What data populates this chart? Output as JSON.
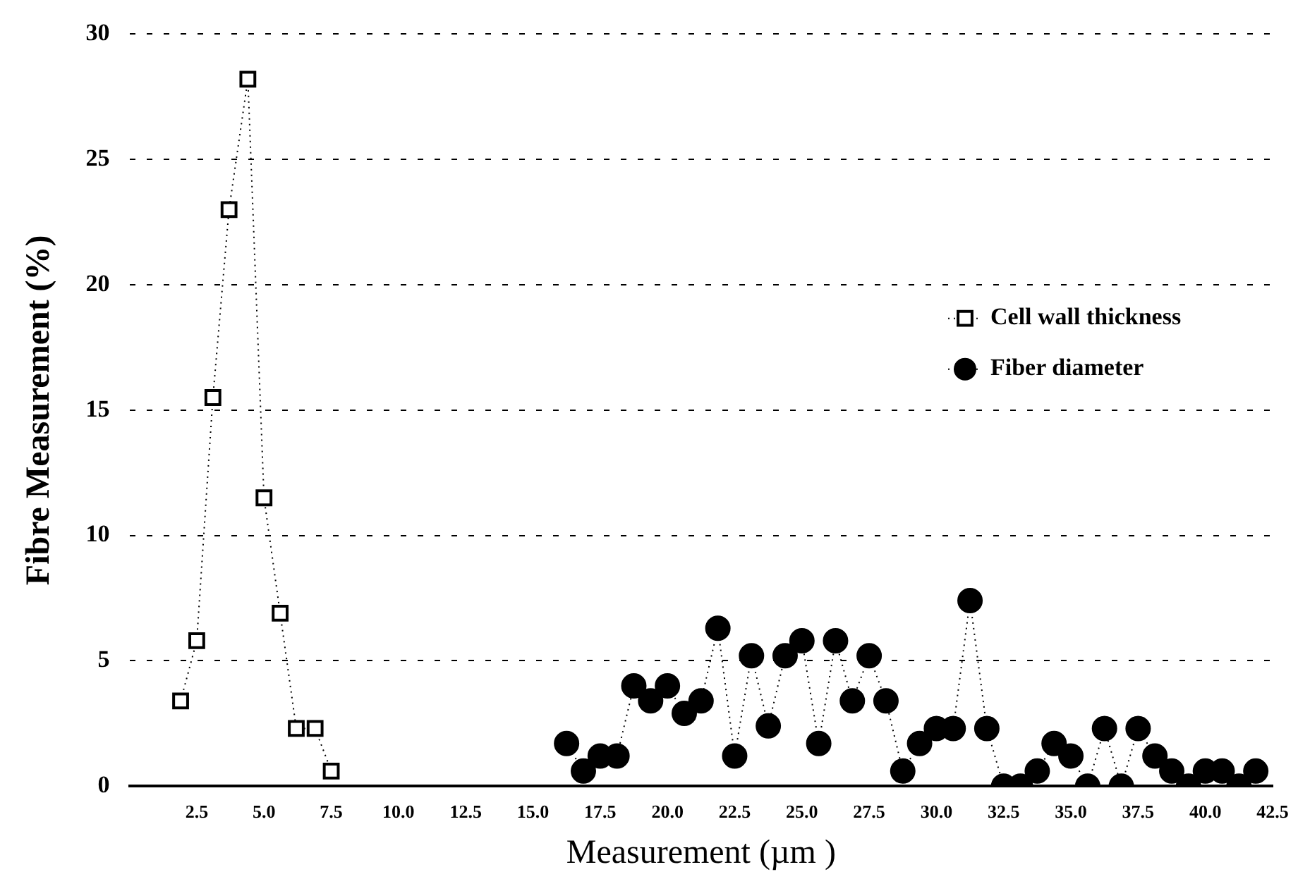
{
  "chart_data": {
    "type": "line",
    "xlabel": "Measurement (µm )",
    "ylabel": "Fibre Measurement (%)",
    "xlim": [
      0,
      42.5
    ],
    "xticks": [
      {
        "value": 2.5,
        "label": "2.5"
      },
      {
        "value": 5,
        "label": "5.0"
      },
      {
        "value": 7.5,
        "label": "7.5"
      },
      {
        "value": 10,
        "label": "10.0"
      },
      {
        "value": 12.5,
        "label": "12.5"
      },
      {
        "value": 15,
        "label": "15.0"
      },
      {
        "value": 17.5,
        "label": "17.5"
      },
      {
        "value": 20,
        "label": "20.0"
      },
      {
        "value": 22.5,
        "label": "22.5"
      },
      {
        "value": 25,
        "label": "25.0"
      },
      {
        "value": 27.5,
        "label": "27.5"
      },
      {
        "value": 30,
        "label": "30.0"
      },
      {
        "value": 32.5,
        "label": "32.5"
      },
      {
        "value": 35,
        "label": "35.0"
      },
      {
        "value": 37.5,
        "label": "37.5"
      },
      {
        "value": 40,
        "label": "40.0"
      },
      {
        "value": 42.5,
        "label": "42.5"
      }
    ],
    "ylim": [
      0,
      30
    ],
    "yticks": [
      0,
      5,
      10,
      15,
      20,
      25,
      30
    ],
    "grid": "y",
    "legend": "right",
    "line_style": "dotted",
    "series": [
      {
        "name": "Cell wall thickness",
        "color": "#000000",
        "marker": "square",
        "x": [
          1.9,
          2.5,
          3.1,
          3.7,
          4.4,
          5.0,
          5.6,
          6.2,
          6.9,
          7.5
        ],
        "values": [
          3.4,
          5.8,
          15.5,
          23.0,
          28.2,
          11.5,
          6.9,
          2.3,
          2.3,
          0.6
        ]
      },
      {
        "name": "Fiber diameter",
        "color": "#000000",
        "marker": "circle",
        "x": [
          16.25,
          16.875,
          17.5,
          18.125,
          18.75,
          19.375,
          20,
          20.625,
          21.25,
          21.875,
          22.5,
          23.125,
          23.75,
          24.375,
          25,
          25.625,
          26.25,
          26.875,
          27.5,
          28.125,
          28.75,
          29.375,
          30,
          30.625,
          31.25,
          31.875,
          32.5,
          33.125,
          33.75,
          34.375,
          35,
          35.625,
          36.25,
          36.875,
          37.5,
          38.125,
          38.75,
          39.375,
          40,
          40.625,
          41.25,
          41.875
        ],
        "values": [
          1.7,
          0.6,
          1.2,
          1.2,
          4.0,
          3.4,
          4.0,
          2.9,
          3.4,
          6.3,
          1.2,
          5.2,
          2.4,
          5.2,
          5.8,
          1.7,
          5.8,
          3.4,
          5.2,
          3.4,
          0.6,
          1.7,
          2.3,
          2.3,
          7.4,
          2.3,
          0,
          0,
          0.6,
          1.7,
          1.2,
          0,
          2.3,
          0,
          2.3,
          1.2,
          0.6,
          0,
          0.6,
          0.6,
          0,
          0.6
        ]
      }
    ]
  }
}
